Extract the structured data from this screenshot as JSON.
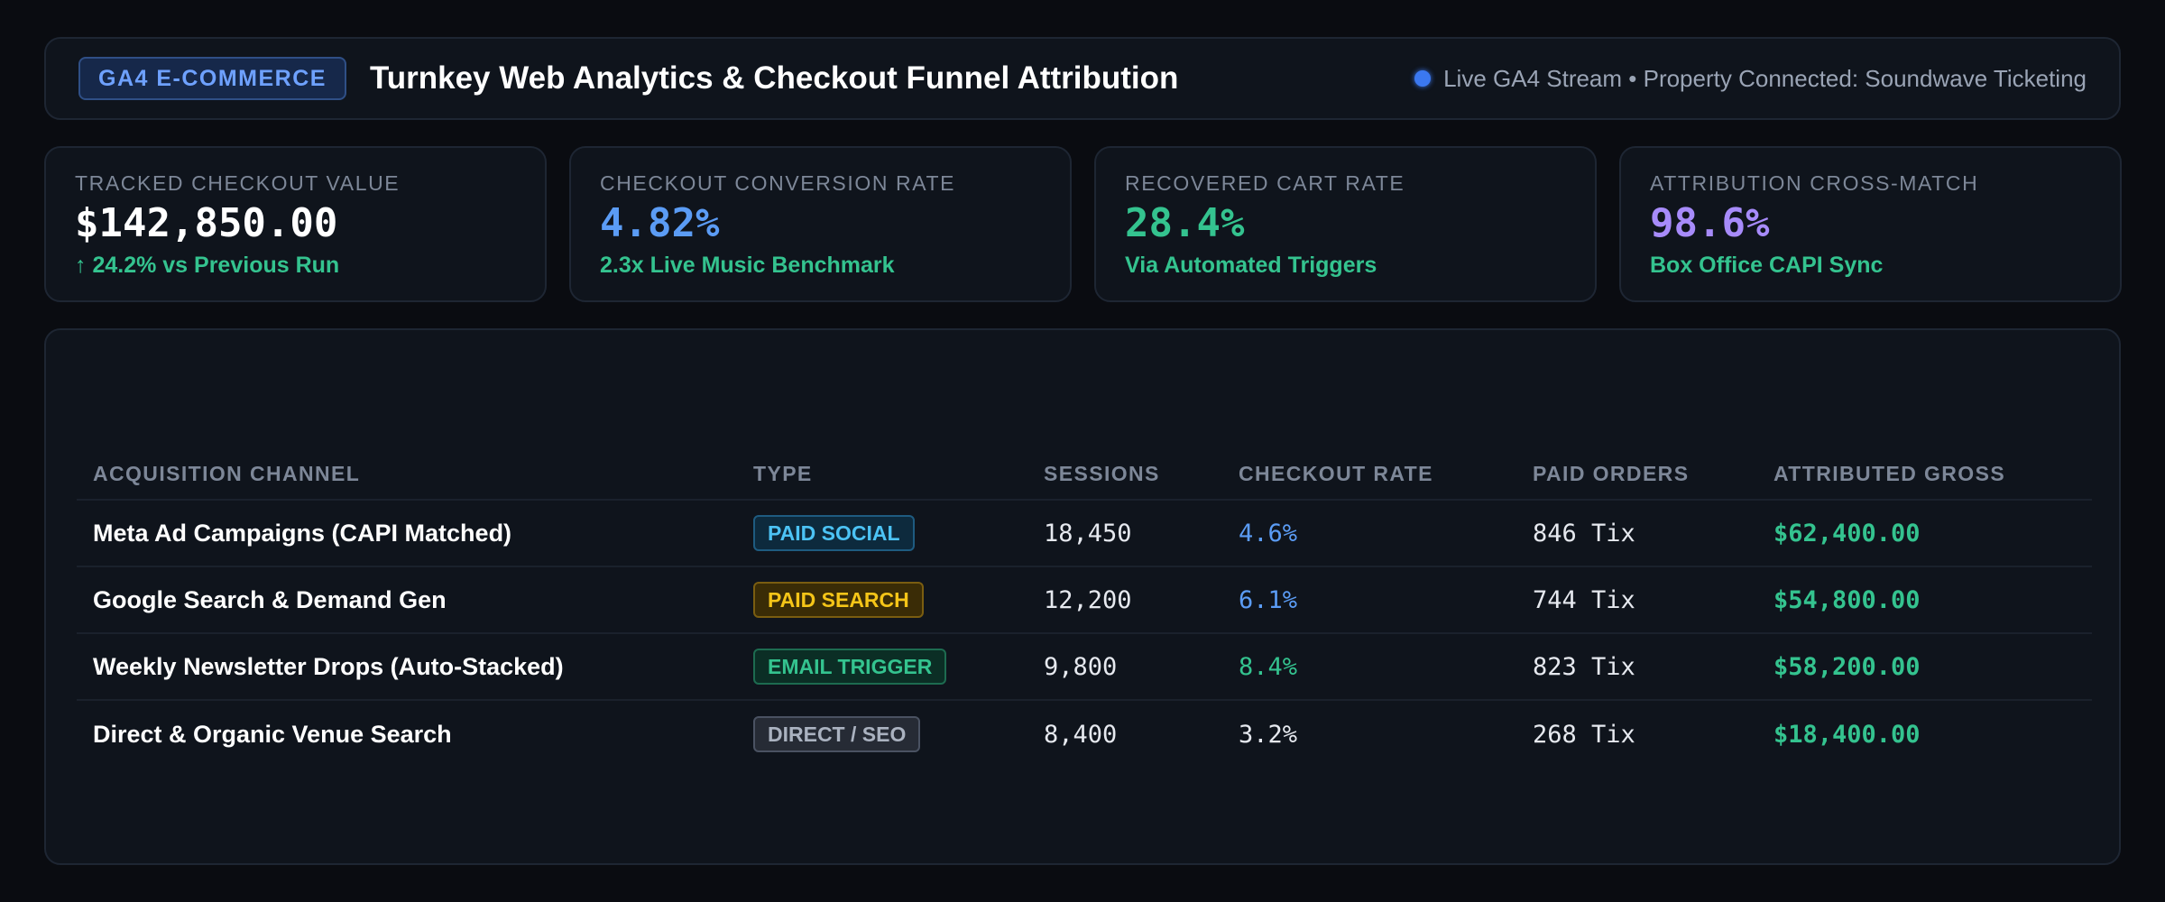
{
  "header": {
    "tag": "GA4 E-COMMERCE",
    "title": "Turnkey Web Analytics & Checkout Funnel Attribution",
    "status": "Live GA4 Stream • Property Connected: Soundwave Ticketing"
  },
  "kpis": [
    {
      "label": "TRACKED CHECKOUT VALUE",
      "value": "$142,850.00",
      "sub": "↑ 24.2% vs Previous Run",
      "color": "#ffffff"
    },
    {
      "label": "CHECKOUT CONVERSION RATE",
      "value": "4.82%",
      "sub": "2.3x Live Music Benchmark",
      "color": "#5b9cf5"
    },
    {
      "label": "RECOVERED CART RATE",
      "value": "28.4%",
      "sub": "Via Automated Triggers",
      "color": "#34c38f"
    },
    {
      "label": "ATTRIBUTION CROSS-MATCH",
      "value": "98.6%",
      "sub": "Box Office CAPI Sync",
      "color": "#a78bfa"
    }
  ],
  "table": {
    "headers": [
      "ACQUISITION CHANNEL",
      "TYPE",
      "SESSIONS",
      "CHECKOUT RATE",
      "PAID ORDERS",
      "ATTRIBUTED GROSS"
    ],
    "rows": [
      {
        "channel": "Meta Ad Campaigns (CAPI Matched)",
        "type": "PAID SOCIAL",
        "sessions": "18,450",
        "rate": "4.6%",
        "orders": "846 Tix",
        "gross": "$62,400.00"
      },
      {
        "channel": "Google Search & Demand Gen",
        "type": "PAID SEARCH",
        "sessions": "12,200",
        "rate": "6.1%",
        "orders": "744 Tix",
        "gross": "$54,800.00"
      },
      {
        "channel": "Weekly Newsletter Drops (Auto-Stacked)",
        "type": "EMAIL TRIGGER",
        "sessions": "9,800",
        "rate": "8.4%",
        "orders": "823 Tix",
        "gross": "$58,200.00"
      },
      {
        "channel": "Direct & Organic Venue Search",
        "type": "DIRECT / SEO",
        "sessions": "8,400",
        "rate": "3.2%",
        "orders": "268 Tix",
        "gross": "$18,400.00"
      }
    ]
  },
  "colors": {
    "accent_blue": "#5b9cf5",
    "accent_green": "#34c38f",
    "accent_purple": "#a78bfa",
    "status_dot": "#3b78f0"
  }
}
